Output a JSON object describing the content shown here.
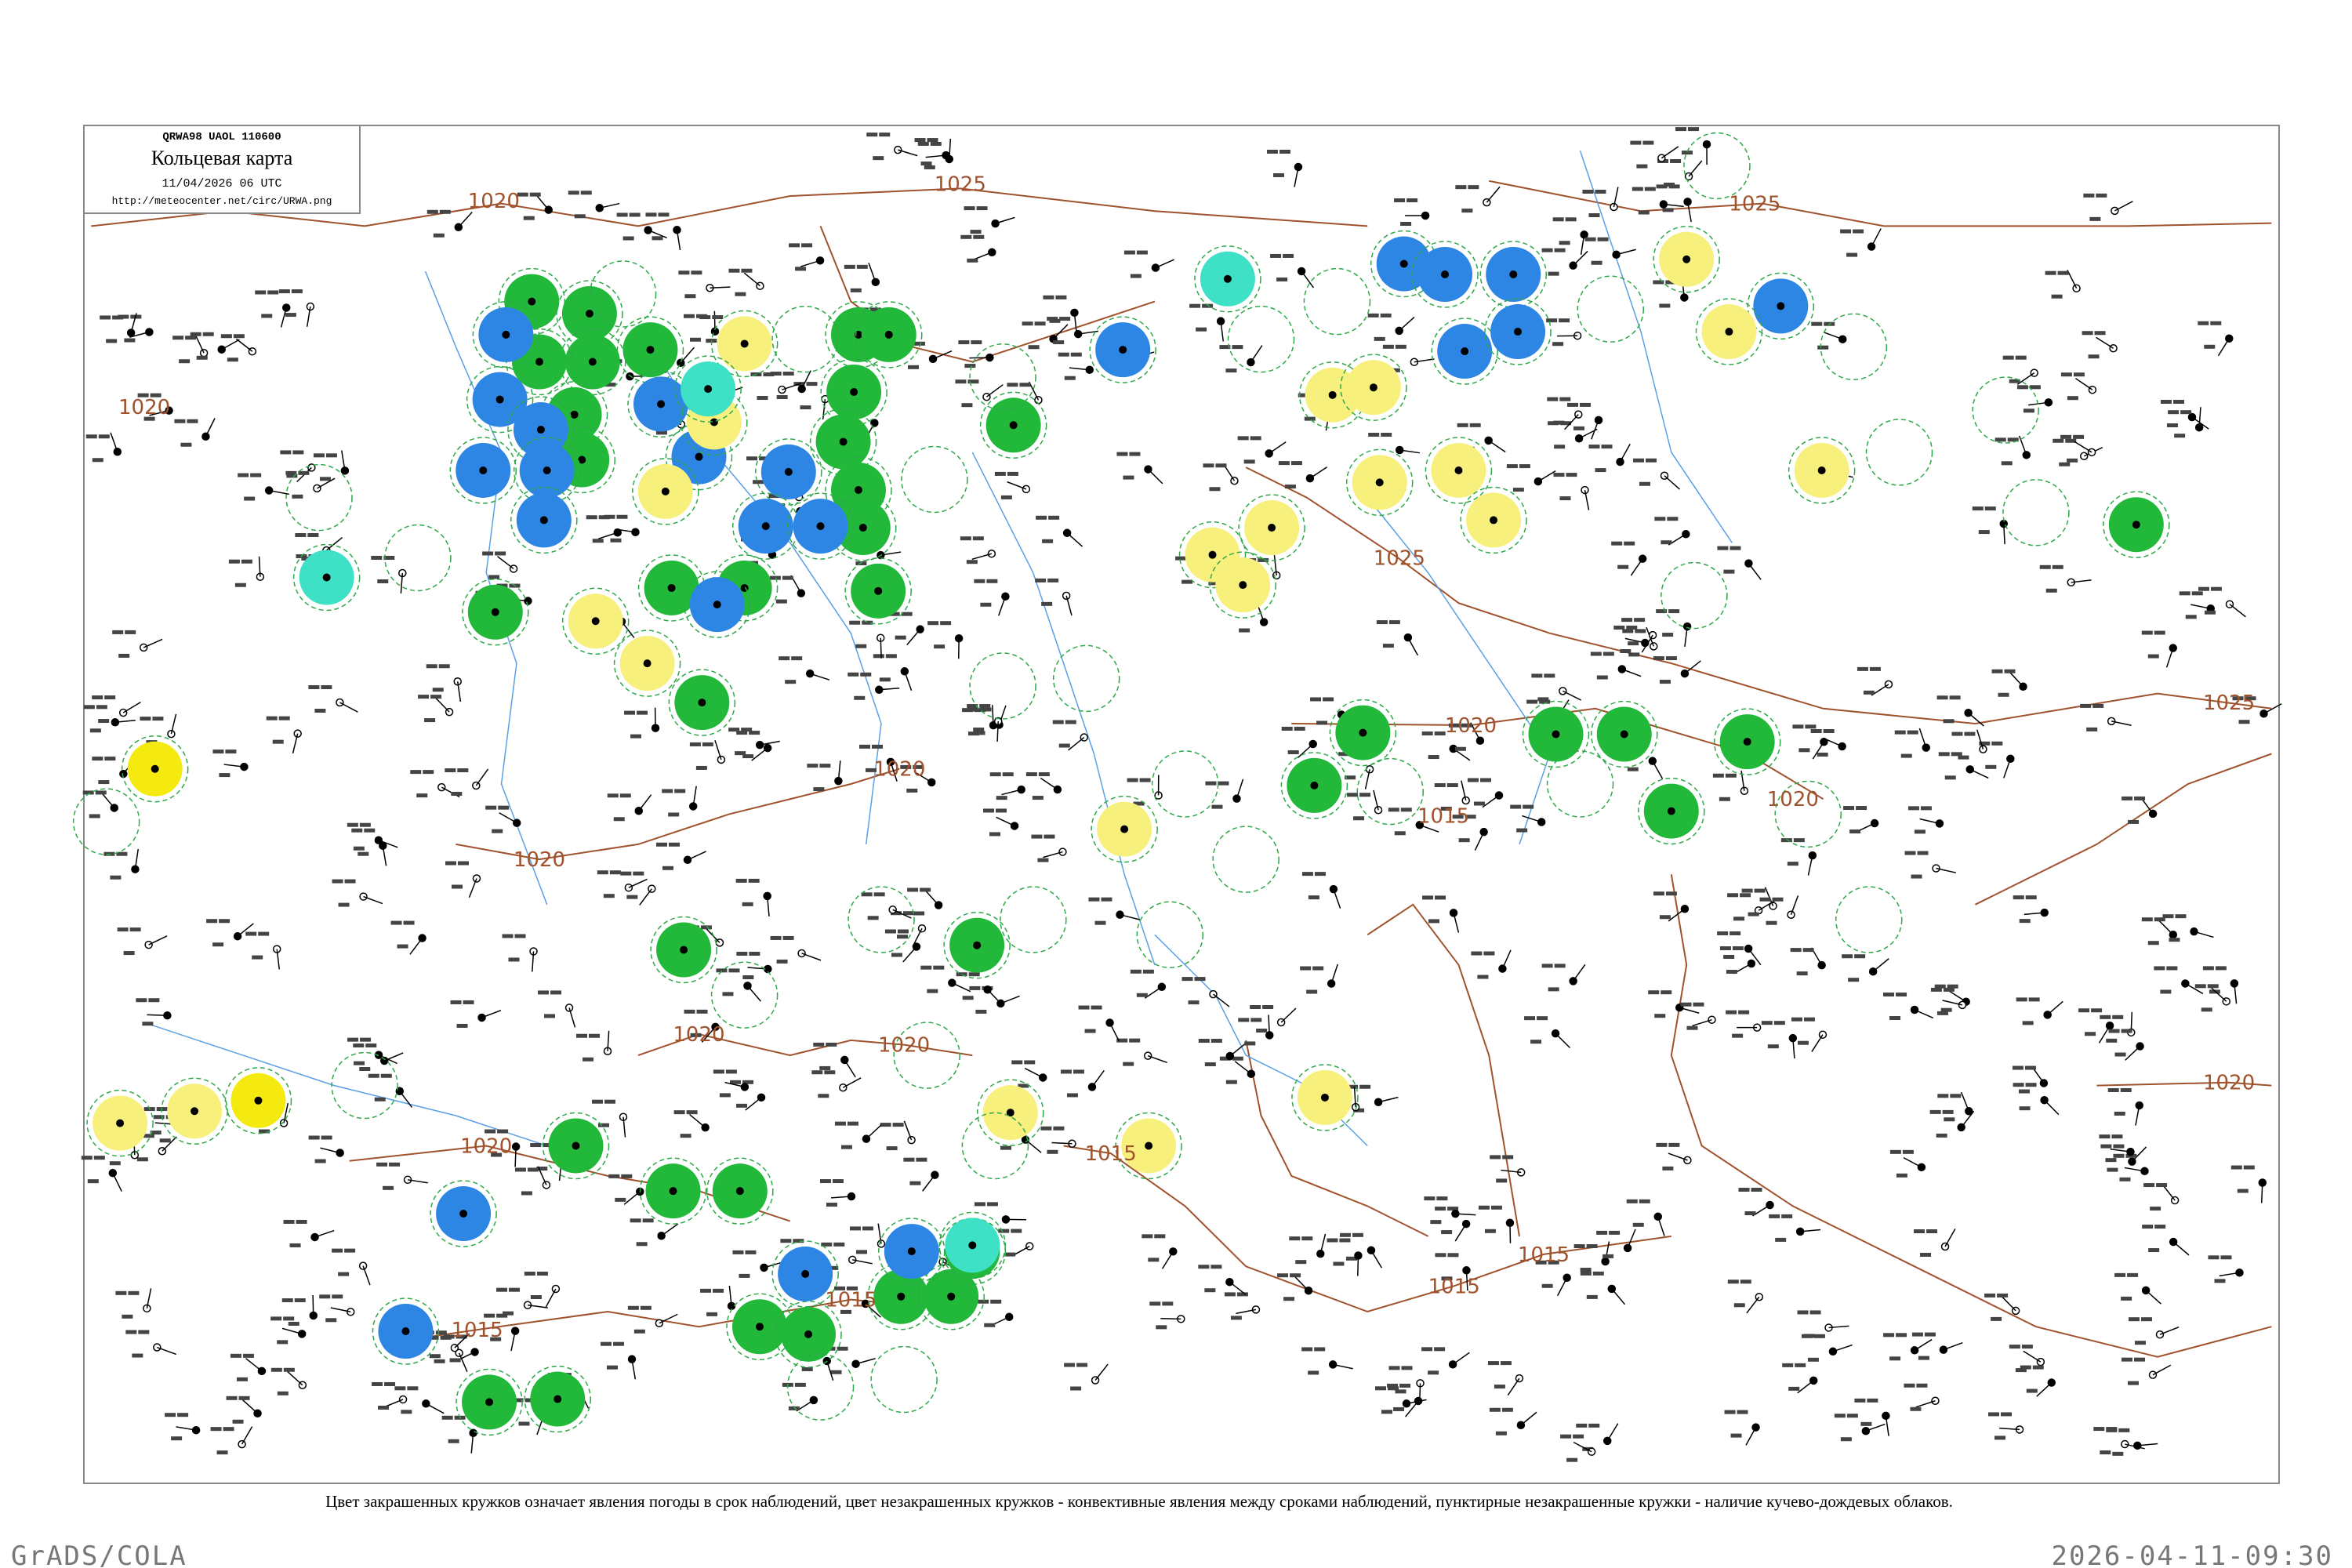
{
  "header": {
    "code": "QRWA98  UAOL  110600",
    "title": "Кольцевая карта",
    "datetime": "11/04/2026 06 UTC",
    "url": "http://meteocenter.net/circ/URWA.png"
  },
  "isobar_labels": [
    "1020",
    "1025",
    "1025",
    "1020",
    "1025",
    "1020",
    "1015",
    "1020",
    "1020",
    "1020",
    "1020",
    "1020",
    "1025",
    "1020",
    "1015",
    "1015",
    "1015",
    "1020",
    "1015",
    "1015"
  ],
  "caption": "Цвет закрашенных кружков означает явления погоды в срок наблюдений, цвет незакрашенных кружков - конвективные явления между сроками наблюдений, пунктирные незакрашенные кружки - наличие кучево-дождевых облаков.",
  "footer": {
    "software": "GrADS/COLA",
    "timestamp": "2026-04-11-09:30"
  }
}
